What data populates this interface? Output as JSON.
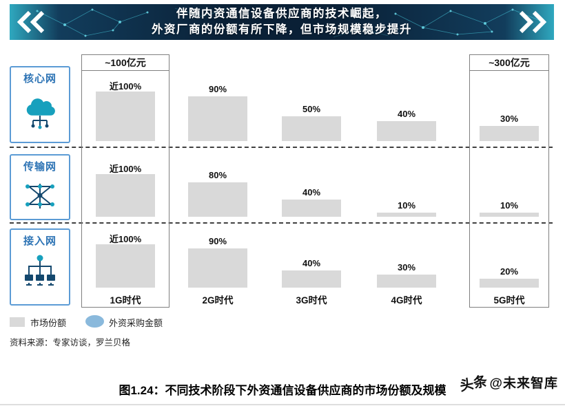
{
  "banner": {
    "line1": "伴随内资通信设备供应商的技术崛起，",
    "line2": "外资厂商的份额有所下降，但市场规模稳步提升"
  },
  "chart_data": {
    "type": "bar",
    "title": "不同技术阶段下外资通信设备供应商的市场份额及规模",
    "categories": [
      "1G时代",
      "2G时代",
      "3G时代",
      "4G时代",
      "5G时代"
    ],
    "value_unit": "%",
    "ylim": [
      0,
      100
    ],
    "rows": [
      {
        "name": "核心网",
        "labels": [
          "近100%",
          "90%",
          "50%",
          "40%",
          "30%"
        ],
        "values": [
          100,
          90,
          50,
          40,
          30
        ]
      },
      {
        "name": "传输网",
        "labels": [
          "近100%",
          "80%",
          "40%",
          "10%",
          "10%"
        ],
        "values": [
          100,
          80,
          40,
          10,
          10
        ]
      },
      {
        "name": "接入网",
        "labels": [
          "近100%",
          "90%",
          "40%",
          "30%",
          "20%"
        ],
        "values": [
          100,
          90,
          40,
          30,
          20
        ]
      }
    ],
    "annotations": {
      "col_1g": "~100亿元",
      "col_5g": "~300亿元"
    }
  },
  "legend": {
    "market_share": "市场份额",
    "foreign_purchase": "外资采购金额"
  },
  "source": "资料来源：专家访谈，罗兰贝格",
  "caption": "图1.24：不同技术阶段下外资通信设备供应商的市场份额及规模",
  "watermark": {
    "logo": "头条",
    "handle": "@未来智库"
  },
  "colors": {
    "bar": "#d9d9d9",
    "row_label_blue": "#2e74b5",
    "row_box_border": "#5b9bd5",
    "banner_navy": "#0a2036",
    "banner_teal": "#2fa8bf",
    "legend_ellipse": "#8ab9dc",
    "icon_teal": "#17a0bd",
    "icon_navy": "#14486e"
  }
}
